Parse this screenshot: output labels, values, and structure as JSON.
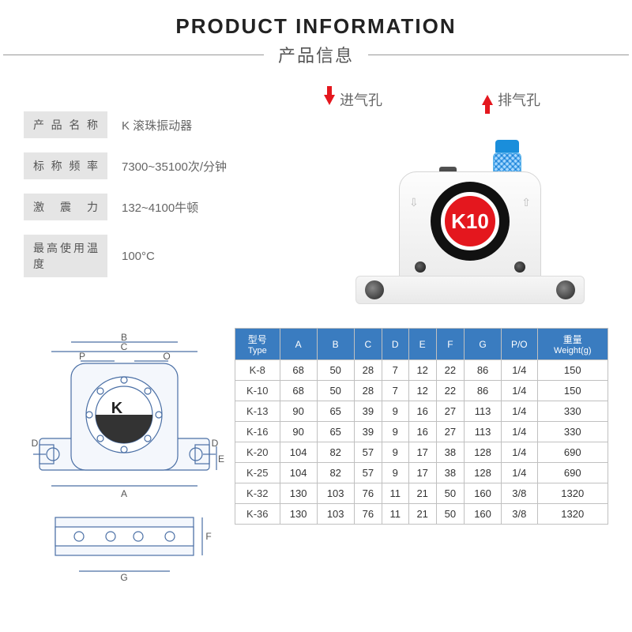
{
  "header": {
    "title_en": "PRODUCT INFORMATION",
    "title_cn": "产品信息"
  },
  "callouts": {
    "inlet_label": "进气孔",
    "outlet_label": "排气孔",
    "arrow_color": "#e4171e"
  },
  "specs": [
    {
      "label": "产品名称",
      "value": "K 滚珠振动器"
    },
    {
      "label": "标称频率",
      "value": "7300~35100次/分钟"
    },
    {
      "label": "激 震 力",
      "value": "132~4100牛顿"
    },
    {
      "label": "最高使用温度",
      "value": "100°C"
    }
  ],
  "product": {
    "emblem_text": "K10",
    "emblem_bg": "#e4171e",
    "emblem_ring": "#111111",
    "body_color": "#f2f2f2",
    "fitting": {
      "type": "push-in",
      "color_metal": "#c9c5bb",
      "color_tube": "#222"
    },
    "muffler": {
      "color_body": "#1a8edb",
      "color_mesh": "#8fd0f2"
    }
  },
  "diagram": {
    "device_letter": "K",
    "dim_labels": [
      "A",
      "B",
      "C",
      "D",
      "E",
      "F",
      "G",
      "P",
      "O"
    ],
    "line_color": "#4a6fa5",
    "fill_color": "#e8eef8"
  },
  "table": {
    "header_bg": "#3a7cc0",
    "header_fg": "#ffffff",
    "columns": [
      {
        "top": "型号",
        "sub": "Type"
      },
      {
        "top": "A",
        "sub": ""
      },
      {
        "top": "B",
        "sub": ""
      },
      {
        "top": "C",
        "sub": ""
      },
      {
        "top": "D",
        "sub": ""
      },
      {
        "top": "E",
        "sub": ""
      },
      {
        "top": "F",
        "sub": ""
      },
      {
        "top": "G",
        "sub": ""
      },
      {
        "top": "P/O",
        "sub": ""
      },
      {
        "top": "重量",
        "sub": "Weight(g)"
      }
    ],
    "rows": [
      [
        "K-8",
        68,
        50,
        28,
        7,
        12,
        22,
        86,
        "1/4",
        150
      ],
      [
        "K-10",
        68,
        50,
        28,
        7,
        12,
        22,
        86,
        "1/4",
        150
      ],
      [
        "K-13",
        90,
        65,
        39,
        9,
        16,
        27,
        113,
        "1/4",
        330
      ],
      [
        "K-16",
        90,
        65,
        39,
        9,
        16,
        27,
        113,
        "1/4",
        330
      ],
      [
        "K-20",
        104,
        82,
        57,
        9,
        17,
        38,
        128,
        "1/4",
        690
      ],
      [
        "K-25",
        104,
        82,
        57,
        9,
        17,
        38,
        128,
        "1/4",
        690
      ],
      [
        "K-32",
        130,
        103,
        76,
        11,
        21,
        50,
        160,
        "3/8",
        1320
      ],
      [
        "K-36",
        130,
        103,
        76,
        11,
        21,
        50,
        160,
        "3/8",
        1320
      ]
    ]
  }
}
